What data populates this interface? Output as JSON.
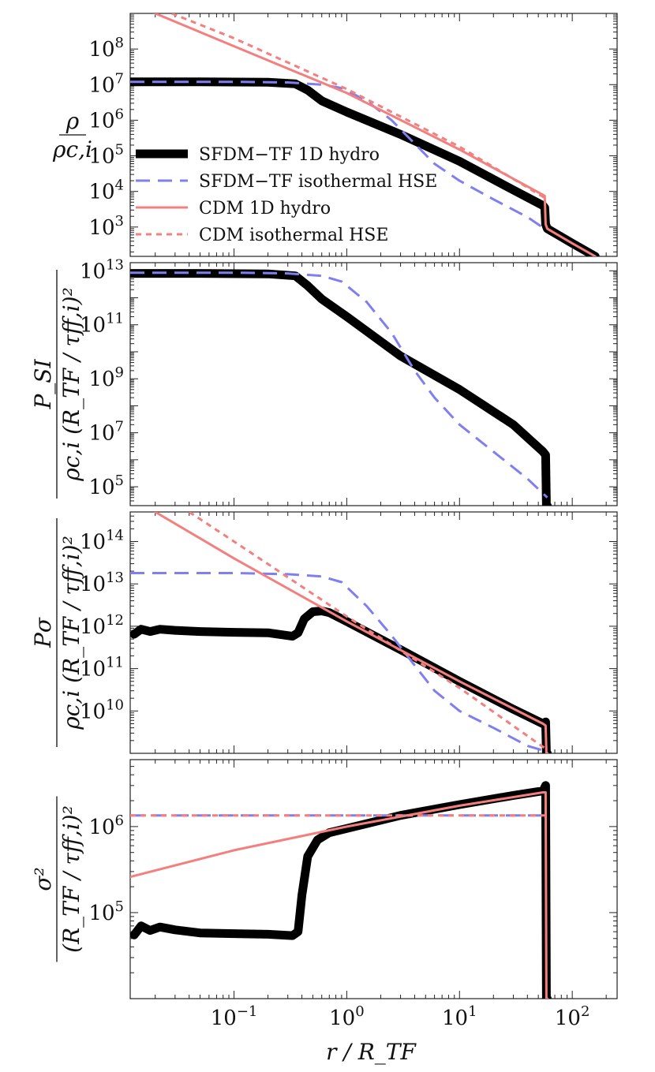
{
  "chart_data": {
    "type": "line",
    "xlabel": "r / R_TF",
    "x_scale": "log",
    "xlim": [
      0.012,
      250
    ],
    "x_ticks": [
      {
        "value": 0.1,
        "base": "10",
        "exp": "−1"
      },
      {
        "value": 1,
        "base": "10",
        "exp": "0"
      },
      {
        "value": 10,
        "base": "10",
        "exp": "1"
      },
      {
        "value": 100,
        "base": "10",
        "exp": "2"
      }
    ],
    "legend": {
      "placement": "lower-left of top panel",
      "entries": [
        {
          "label": "SFDM−TF 1D hydro",
          "color": "#000000",
          "style": "thick-solid"
        },
        {
          "label": "SFDM−TF isothermal HSE",
          "color": "#7f7ff0",
          "style": "dashed"
        },
        {
          "label": "CDM 1D hydro",
          "color": "#f47f7f",
          "style": "solid"
        },
        {
          "label": "CDM isothermal HSE",
          "color": "#f47f7f",
          "style": "dotted"
        }
      ]
    },
    "panels": [
      {
        "id": "density",
        "ylabel_num": "ρ",
        "ylabel_den": "ρc,i",
        "y_scale": "log",
        "ylim": [
          150,
          1000000000.0
        ],
        "y_ticks": [
          {
            "value": 1000,
            "base": "10",
            "exp": "3"
          },
          {
            "value": 10000,
            "base": "10",
            "exp": "4"
          },
          {
            "value": 100000,
            "base": "10",
            "exp": "5"
          },
          {
            "value": 1000000,
            "base": "10",
            "exp": "6"
          },
          {
            "value": 10000000,
            "base": "10",
            "exp": "7"
          },
          {
            "value": 100000000,
            "base": "10",
            "exp": "8"
          }
        ],
        "series": [
          {
            "name": "SFDM−TF 1D hydro",
            "x": [
              0.012,
              0.05,
              0.2,
              0.35,
              0.45,
              0.6,
              1,
              3,
              10,
              30,
              55,
              57,
              58,
              60,
              100,
              160
            ],
            "y": [
              12000000,
              12000000,
              11700000,
              10500000,
              7000000,
              3500000,
              1700000,
              400000,
              70000,
              11000,
              4000,
              3500,
              1200,
              900,
              350,
              150
            ]
          },
          {
            "name": "SFDM−TF isothermal HSE",
            "x": [
              0.012,
              0.1,
              0.3,
              0.6,
              0.9,
              1.5,
              2.5,
              4,
              6,
              10,
              20,
              40,
              60
            ],
            "y": [
              12000000,
              12000000,
              11500000,
              10000000,
              8000000,
              3500000,
              1000000,
              220000,
              60000,
              20000,
              6000,
              1900,
              800
            ]
          },
          {
            "name": "CDM 1D hydro",
            "x": [
              0.02,
              0.1,
              1,
              10,
              55,
              57,
              58,
              60,
              100,
              160
            ],
            "y": [
              1000000000,
              120000000,
              5800000,
              150000,
              8000,
              7500,
              1200,
              900,
              350,
              150
            ]
          },
          {
            "name": "CDM isothermal HSE",
            "x": [
              0.028,
              0.1,
              1,
              10,
              60
            ],
            "y": [
              1000000000,
              200000000,
              7500000,
              180000,
              6000
            ]
          }
        ]
      },
      {
        "id": "pressure_si",
        "ylabel_num": "P_SI",
        "ylabel_den": "ρc,i (R_TF / τff,i)²",
        "y_scale": "log",
        "ylim": [
          20000,
          20000000000000.0
        ],
        "y_ticks": [
          {
            "value": 100000,
            "base": "10",
            "exp": "5"
          },
          {
            "value": 10000000,
            "base": "10",
            "exp": "7"
          },
          {
            "value": 1000000000,
            "base": "10",
            "exp": "9"
          },
          {
            "value": 100000000000,
            "base": "10",
            "exp": "11"
          },
          {
            "value": 10000000000000,
            "base": "10",
            "exp": "13"
          }
        ],
        "series": [
          {
            "name": "SFDM−TF 1D hydro",
            "x": [
              0.012,
              0.05,
              0.2,
              0.35,
              0.45,
              0.6,
              1,
              3,
              10,
              30,
              55,
              58,
              59,
              60
            ],
            "y": [
              8000000000000,
              8000000000000,
              7700000000000,
              6500000000000,
              2800000000000,
              900000000000,
              200000000000,
              7000000000,
              400000000,
              20000000,
              2000000,
              1500000,
              20000,
              20000
            ]
          },
          {
            "name": "SFDM−TF isothermal HSE",
            "x": [
              0.012,
              0.1,
              0.3,
              0.6,
              0.9,
              1.5,
              2.5,
              4,
              6,
              10,
              20,
              40,
              60
            ],
            "y": [
              8500000000000,
              8500000000000,
              8000000000000,
              6500000000000,
              4000000000000,
              700000000000,
              50000000000,
              2000000000,
              200000000,
              20000000,
              2000000,
              200000,
              40000
            ]
          }
        ]
      },
      {
        "id": "pressure_sigma",
        "ylabel_num": "Pσ",
        "ylabel_den": "ρc,i (R_TF / τff,i)²",
        "y_scale": "log",
        "ylim": [
          1000000000,
          500000000000000.0
        ],
        "y_ticks": [
          {
            "value": 10000000000,
            "base": "10",
            "exp": "10"
          },
          {
            "value": 100000000000,
            "base": "10",
            "exp": "11"
          },
          {
            "value": 1000000000000,
            "base": "10",
            "exp": "12"
          },
          {
            "value": 10000000000000,
            "base": "10",
            "exp": "13"
          },
          {
            "value": 100000000000000,
            "base": "10",
            "exp": "14"
          }
        ],
        "series": [
          {
            "name": "SFDM−TF 1D hydro",
            "x": [
              0.013,
              0.015,
              0.018,
              0.022,
              0.03,
              0.05,
              0.1,
              0.2,
              0.33,
              0.37,
              0.42,
              0.5,
              0.6,
              0.7,
              1,
              3,
              10,
              30,
              55,
              58,
              59,
              60
            ],
            "y": [
              650000000000,
              850000000000,
              750000000000,
              850000000000,
              800000000000,
              750000000000,
              720000000000,
              700000000000,
              580000000000,
              700000000000,
              1500000000000,
              2200000000000,
              2300000000000,
              2100000000000,
              1300000000000,
              280000000000,
              50000000000,
              11000000000,
              5000000000,
              5500000000,
              1000000000,
              1000000000
            ]
          },
          {
            "name": "SFDM−TF isothermal HSE",
            "x": [
              0.012,
              0.1,
              0.3,
              0.6,
              0.9,
              1.5,
              2.5,
              4,
              6,
              10,
              20,
              40,
              60
            ],
            "y": [
              18000000000000,
              18000000000000,
              17000000000000,
              15000000000000,
              11000000000000,
              3000000000000,
              600000000000,
              120000000000,
              30000000000,
              10000000000,
              4000000000,
              1500000000,
              1100000000
            ]
          },
          {
            "name": "CDM 1D hydro",
            "x": [
              0.02,
              0.1,
              1,
              10,
              55,
              58,
              59,
              60
            ],
            "y": [
              500000000000000,
              40000000000000,
              1300000000000,
              50000000000,
              5000000000,
              4500000000,
              1000000000,
              1000000000
            ]
          },
          {
            "name": "CDM isothermal HSE",
            "x": [
              0.04,
              0.1,
              1,
              10,
              60
            ],
            "y": [
              500000000000000,
              100000000000000,
              1700000000000,
              35000000000,
              1200000000
            ]
          }
        ]
      },
      {
        "id": "dispersion",
        "ylabel_num": "σ²",
        "ylabel_den": "(R_TF / τff,i)²",
        "y_scale": "log",
        "ylim": [
          10000,
          6000000
        ],
        "y_ticks": [
          {
            "value": 100000,
            "base": "10",
            "exp": "5"
          },
          {
            "value": 1000000,
            "base": "10",
            "exp": "6"
          }
        ],
        "series": [
          {
            "name": "SFDM−TF 1D hydro",
            "x": [
              0.013,
              0.015,
              0.018,
              0.022,
              0.03,
              0.05,
              0.1,
              0.2,
              0.33,
              0.37,
              0.4,
              0.45,
              0.55,
              0.7,
              1,
              3,
              10,
              30,
              55,
              58,
              59,
              60
            ],
            "y": [
              55000,
              70000,
              62000,
              68000,
              63000,
              58000,
              57000,
              56000,
              54000,
              60000,
              160000,
              450000,
              700000,
              850000,
              950000,
              1350000,
              1800000,
              2300000,
              2600000,
              3000000,
              10000,
              10000
            ]
          },
          {
            "name": "SFDM−TF isothermal HSE",
            "x": [
              0.012,
              60
            ],
            "y": [
              1350000,
              1350000
            ]
          },
          {
            "name": "CDM 1D hydro",
            "x": [
              0.012,
              0.1,
              1,
              10,
              55,
              58,
              59,
              60
            ],
            "y": [
              260000,
              530000,
              1000000,
              1750000,
              2500000,
              2500000,
              10000,
              10000
            ]
          },
          {
            "name": "CDM isothermal HSE",
            "x": [
              0.012,
              60
            ],
            "y": [
              1350000,
              1350000
            ]
          }
        ]
      }
    ]
  }
}
